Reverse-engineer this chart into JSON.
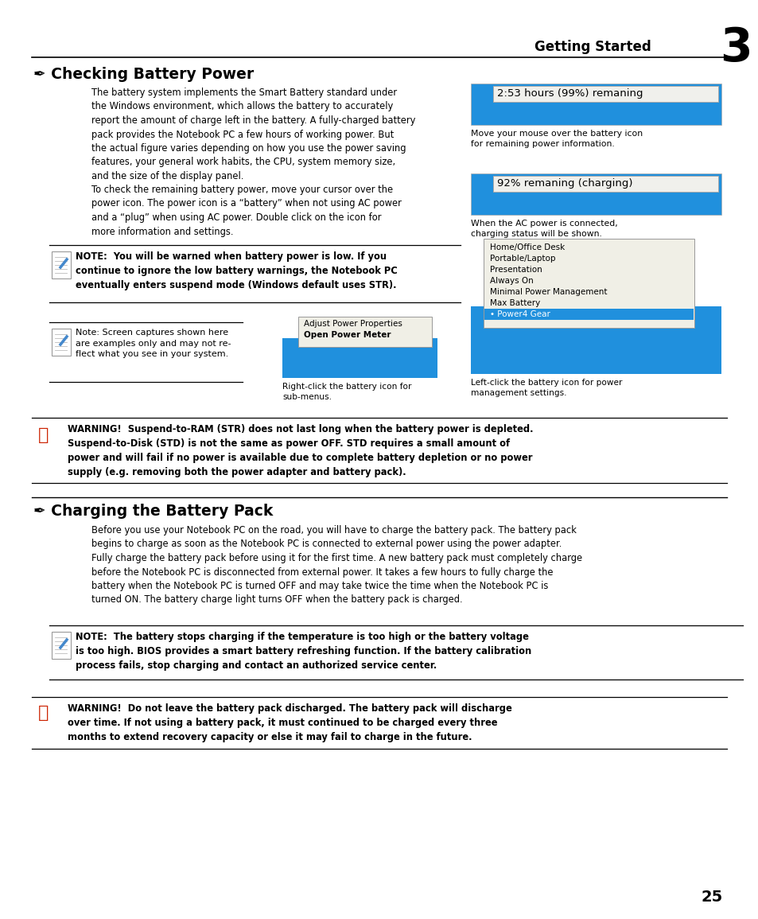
{
  "title_right": "Getting Started",
  "title_number": "3",
  "section1_title": "✒ Checking Battery Power",
  "section1_para1": "The battery system implements the Smart Battery standard under\nthe Windows environment, which allows the battery to accurately\nreport the amount of charge left in the battery. A fully-charged battery\npack provides the Notebook PC a few hours of working power. But\nthe actual figure varies depending on how you use the power saving\nfeatures, your general work habits, the CPU, system memory size,\nand the size of the display panel.",
  "section1_para2": "To check the remaining battery power, move your cursor over the\npower icon. The power icon is a “battery” when not using AC power\nand a “plug” when using AC power. Double click on the icon for\nmore information and settings.",
  "note1_text": "NOTE:  You will be warned when battery power is low. If you\ncontinue to ignore the low battery warnings, the Notebook PC\neventually enters suspend mode (Windows default uses STR).",
  "note2_text": "Note: Screen captures shown here\nare examples only and may not re-\nflect what you see in your system.",
  "img1_caption": "Move your mouse over the battery icon\nfor remaining power information.",
  "img1_text": "2:53 hours (99%) remaning",
  "img2_caption": "When the AC power is connected,\ncharging status will be shown.",
  "img2_text": "92% remaning (charging)",
  "img3_caption": "Right-click the battery icon for\nsub-menus.",
  "img3_items": [
    "Adjust Power Properties",
    "Open Power Meter"
  ],
  "img4_caption": "Left-click the battery icon for power\nmanagement settings.",
  "img4_items": [
    "Home/Office Desk",
    "Portable/Laptop",
    "Presentation",
    "Always On",
    "Minimal Power Management",
    "Max Battery",
    "• Power4 Gear"
  ],
  "warning1_text": "WARNING!  Suspend-to-RAM (STR) does not last long when the battery power is depleted.\nSuspend-to-Disk (STD) is not the same as power OFF. STD requires a small amount of\npower and will fail if no power is available due to complete battery depletion or no power\nsupply (e.g. removing both the power adapter and battery pack).",
  "section2_title": "✒ Charging the Battery Pack",
  "section2_para1": "Before you use your Notebook PC on the road, you will have to charge the battery pack. The battery pack\nbegins to charge as soon as the Notebook PC is connected to external power using the power adapter.\nFully charge the battery pack before using it for the first time. A new battery pack must completely charge\nbefore the Notebook PC is disconnected from external power. It takes a few hours to fully charge the\nbattery when the Notebook PC is turned OFF and may take twice the time when the Notebook PC is\nturned ON. The battery charge light turns OFF when the battery pack is charged.",
  "note3_text": "NOTE:  The battery stops charging if the temperature is too high or the battery voltage\nis too high. BIOS provides a smart battery refreshing function. If the battery calibration\nprocess fails, stop charging and contact an authorized service center.",
  "warning2_text": "WARNING!  Do not leave the battery pack discharged. The battery pack will discharge\nover time. If not using a battery pack, it must continued to be charged every three\nmonths to extend recovery capacity or else it may fail to charge in the future.",
  "page_number": "25",
  "bg_color": "#ffffff",
  "text_color": "#000000",
  "blue_bar_color": "#2090dd",
  "tooltip_bg": "#f0f0ec",
  "menu_bg": "#f0efe6",
  "note_icon_color": "#888888",
  "warn_icon_color": "#cc2200"
}
